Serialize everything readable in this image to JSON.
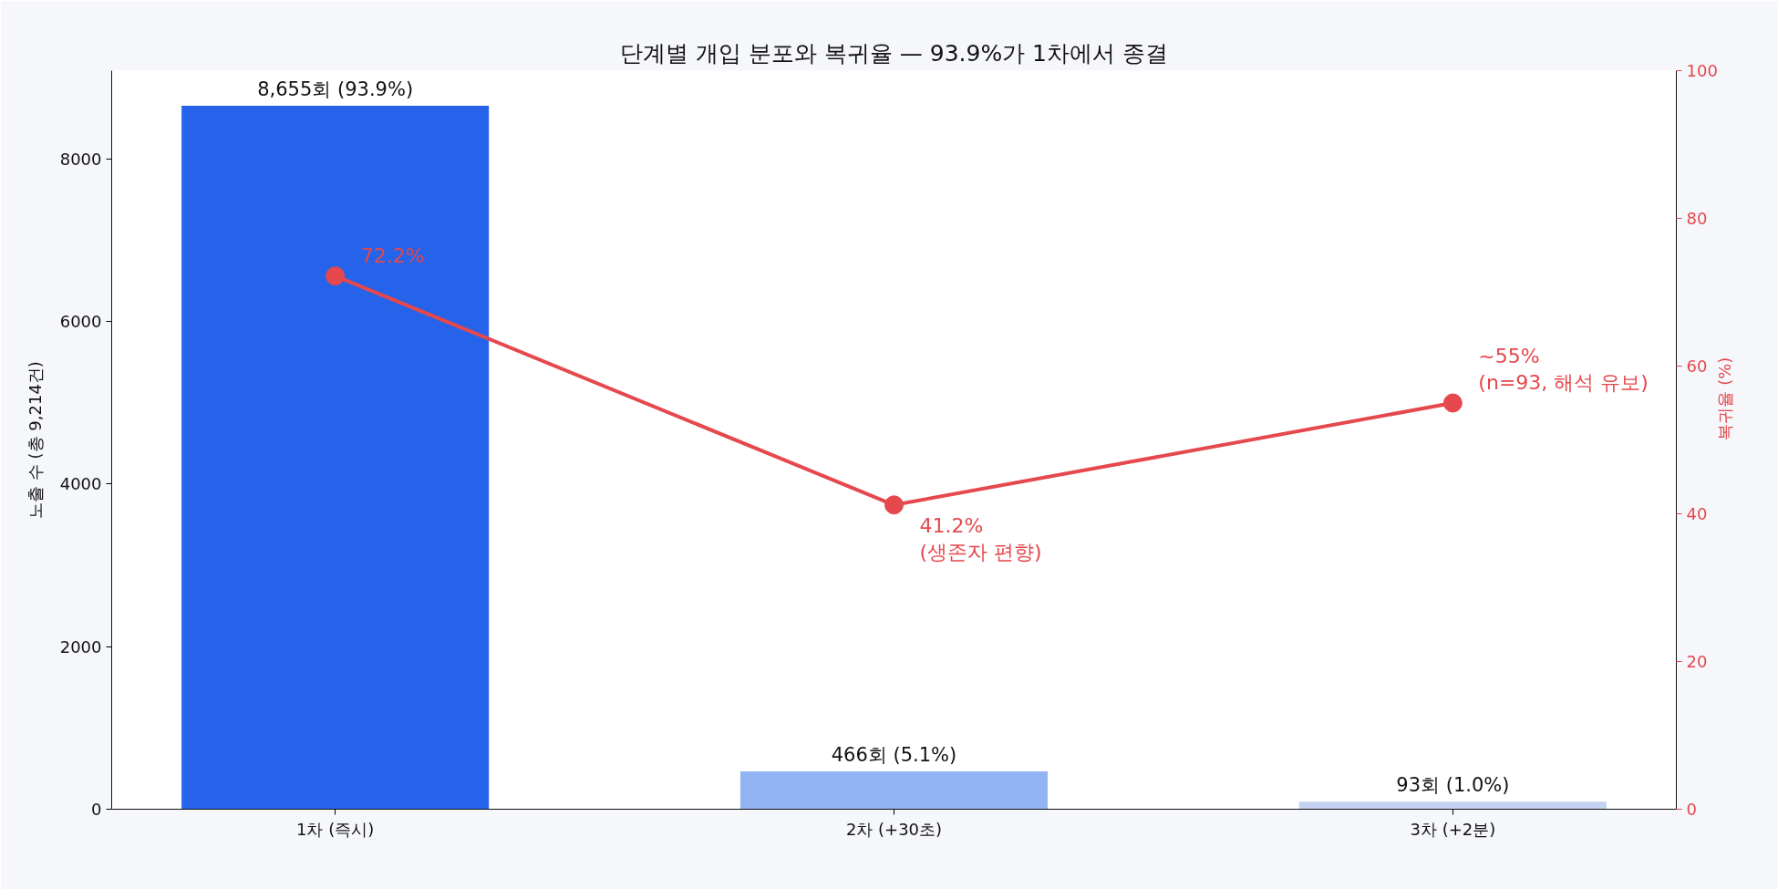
{
  "chart_data": {
    "type": "bar",
    "title": "단계별 개입 분포와 복귀율 — 93.9%가 1차에서 종결",
    "ylabel": "노출 수 (총 9,214건)",
    "y2label": "복귀율 (%)",
    "categories": [
      "1차 (즉시)",
      "2차 (+30초)",
      "3차 (+2분)"
    ],
    "series": [
      {
        "colors": [
          "#2563eb",
          "#93b4f4",
          "#c5d3f2"
        ],
        "values": [
          8655,
          466,
          93
        ],
        "value_labels": [
          "8,655회 (93.9%)",
          "466회 (5.1%)",
          "93회 (1.0%)"
        ]
      },
      {
        "type": "line",
        "axis": "y2",
        "color": "#e5484d",
        "values": [
          72.2,
          41.2,
          55
        ],
        "value_labels": [
          "72.2%",
          "41.2%\n(생존자 편향)",
          "~55%\n(n=93, 해석 유보)"
        ]
      }
    ],
    "ylim": [
      0,
      9088
    ],
    "yticks": [
      0,
      2000,
      4000,
      6000,
      8000
    ],
    "y2lim": [
      0,
      100
    ],
    "y2ticks": [
      0,
      20,
      40,
      60,
      80,
      100
    ],
    "grid": false,
    "marker": "circle",
    "line_style": "solid"
  }
}
